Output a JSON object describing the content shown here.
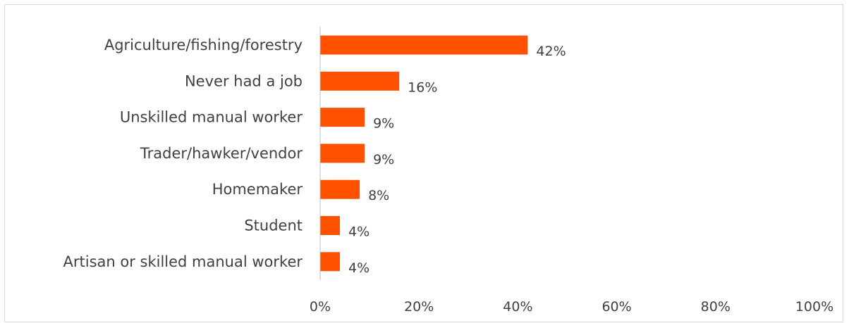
{
  "chart_data": {
    "type": "bar",
    "orientation": "horizontal",
    "categories": [
      "Agriculture/fishing/forestry",
      "Never had a job",
      "Unskilled manual worker",
      "Trader/hawker/vendor",
      "Homemaker",
      "Student",
      "Artisan or skilled manual worker"
    ],
    "values": [
      42,
      16,
      9,
      9,
      8,
      4,
      4
    ],
    "value_labels": [
      "42%",
      "16%",
      "9%",
      "9%",
      "8%",
      "4%",
      "4%"
    ],
    "xlim": [
      0,
      100
    ],
    "xticks": [
      0,
      20,
      40,
      60,
      80,
      100
    ],
    "xtick_labels": [
      "0%",
      "20%",
      "40%",
      "60%",
      "80%",
      "100%"
    ],
    "bar_color": "#ff5100",
    "axis_color": "#bfbfbf",
    "text_color": "#404040",
    "grid": false,
    "legend": "none"
  }
}
